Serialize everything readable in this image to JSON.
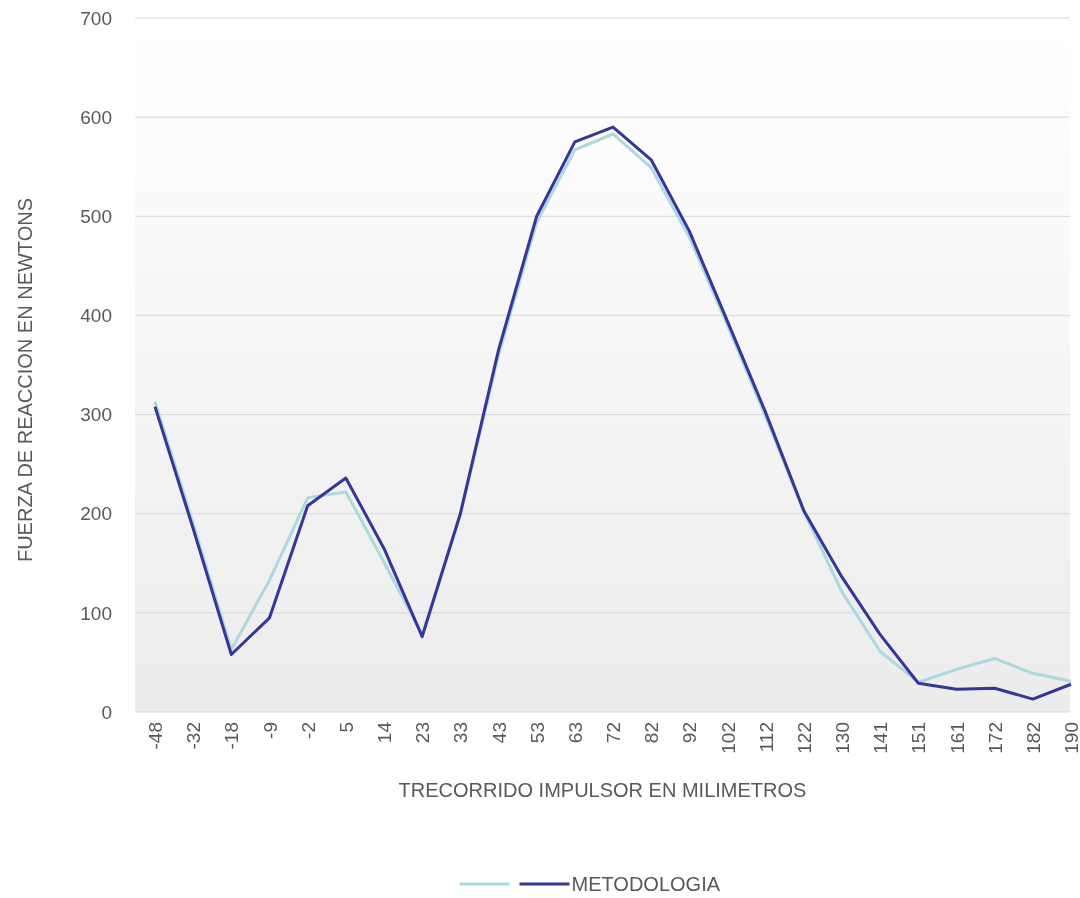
{
  "chart_data": {
    "type": "line",
    "xlabel": "TRECORRIDO IMPULSOR EN MILIMETROS",
    "ylabel": "FUERZA DE REACCION EN NEWTONS",
    "categories": [
      "-48",
      "-32",
      "-18",
      "-9",
      "-2",
      "5",
      "14",
      "23",
      "33",
      "43",
      "53",
      "63",
      "72",
      "82",
      "92",
      "102",
      "112",
      "122",
      "130",
      "141",
      "151",
      "161",
      "172",
      "182",
      "190"
    ],
    "series": [
      {
        "color": "#a9dadd",
        "values": [
          313,
          190,
          63,
          133,
          216,
          222,
          151,
          78,
          199,
          360,
          494,
          567,
          583,
          549,
          479,
          390,
          298,
          202,
          121,
          61,
          30,
          43,
          54,
          39,
          31
        ]
      },
      {
        "name": "METODOLOGIA",
        "color": "#35359a",
        "values": [
          308,
          185,
          58,
          95,
          208,
          236,
          165,
          76,
          200,
          365,
          500,
          575,
          590,
          557,
          485,
          394,
          302,
          203,
          136,
          78,
          29,
          23,
          24,
          13,
          28
        ]
      }
    ],
    "ylim": [
      0,
      700
    ],
    "yticks": [
      0,
      100,
      200,
      300,
      400,
      500,
      600,
      700
    ],
    "grid": "y",
    "legend": "bottom",
    "marker": "none",
    "line_style": "solid"
  }
}
